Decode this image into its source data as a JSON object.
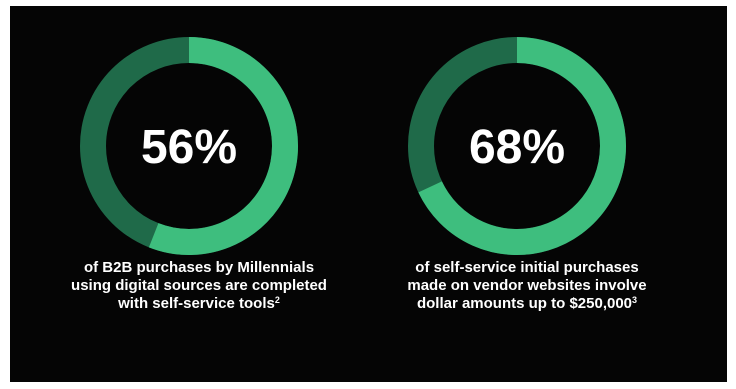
{
  "colors": {
    "background": "#050505",
    "highlight": "#3ebe7e",
    "remainder": "#1f6a49",
    "text": "#ffffff"
  },
  "chart_data": [
    {
      "type": "pie",
      "variant": "donut",
      "value": 56,
      "max": 100,
      "center_label": "56%",
      "caption_lines": [
        "of B2B purchases by Millennials",
        "using digital sources are completed",
        "with self-service tools"
      ],
      "footnote": "2"
    },
    {
      "type": "pie",
      "variant": "donut",
      "value": 68,
      "max": 100,
      "center_label": "68%",
      "caption_lines": [
        "of self-service initial purchases",
        "made on vendor websites involve",
        "dollar amounts up to $250,000"
      ],
      "footnote": "3"
    }
  ]
}
